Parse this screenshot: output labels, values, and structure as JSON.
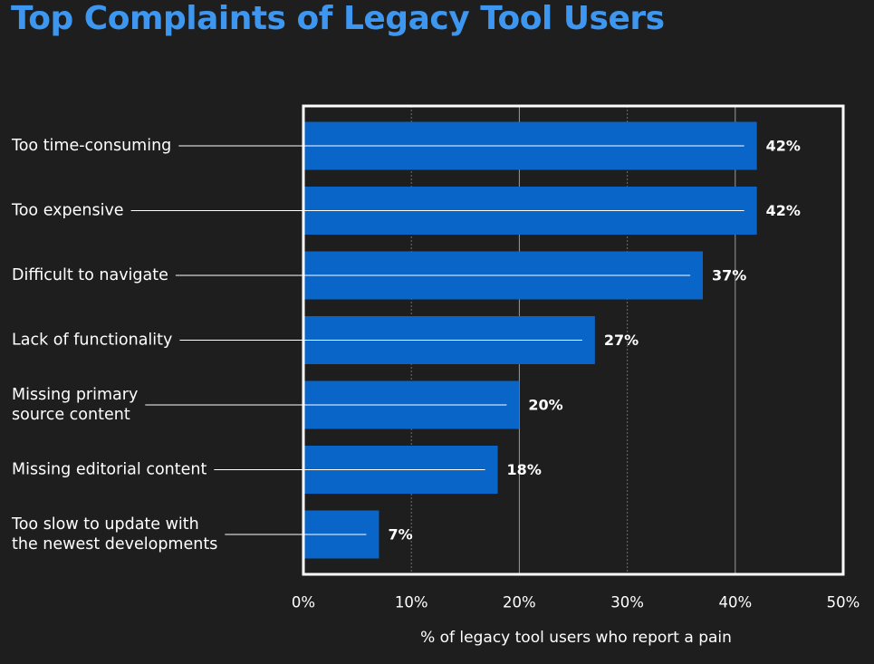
{
  "chart_data": {
    "type": "bar",
    "orientation": "horizontal",
    "title": "Top Complaints of Legacy Tool Users",
    "xlabel": "% of legacy tool users who report a pain",
    "ylabel": "",
    "xlim": [
      0,
      50
    ],
    "ticks": [
      0,
      10,
      20,
      30,
      40,
      50
    ],
    "tick_labels": [
      "0%",
      "10%",
      "20%",
      "30%",
      "40%",
      "50%"
    ],
    "categories": [
      [
        "Too time-consuming"
      ],
      [
        "Too expensive"
      ],
      [
        "Difficult to navigate"
      ],
      [
        "Lack of functionality"
      ],
      [
        "Missing primary",
        "source content"
      ],
      [
        "Missing editorial content"
      ],
      [
        "Too slow to update with",
        "the newest developments"
      ]
    ],
    "values": [
      42,
      42,
      37,
      27,
      20,
      18,
      7
    ],
    "value_labels": [
      "42%",
      "42%",
      "37%",
      "27%",
      "20%",
      "18%",
      "7%"
    ],
    "grid": true,
    "bar_color": "#0966c8",
    "title_color": "#3d97f0",
    "background": "#1e1e1e"
  }
}
